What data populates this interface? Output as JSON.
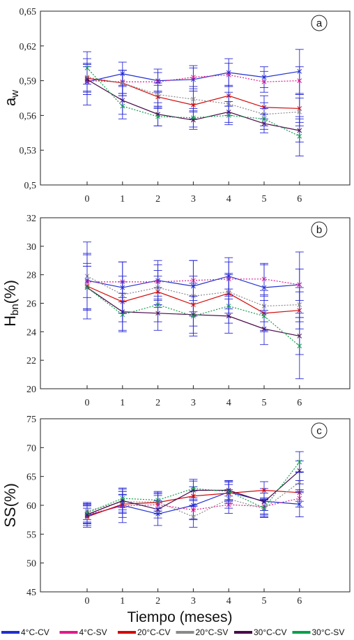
{
  "figure": {
    "x_title": "Tiempo (meses)"
  },
  "legend": [
    {
      "name": "4°C-CV",
      "color": "#1f2fd0"
    },
    {
      "name": "4°C-SV",
      "color": "#e0198c"
    },
    {
      "name": "20°C-CV",
      "color": "#d40a0a"
    },
    {
      "name": "20°C-SV",
      "color": "#8a8a8a"
    },
    {
      "name": "30°C-CV",
      "color": "#4a0a4a"
    },
    {
      "name": "30°C-SV",
      "color": "#0aa04a"
    }
  ],
  "chart_data": [
    {
      "type": "line",
      "panel_label": "a",
      "ylabel_main": "a",
      "ylabel_sub": "w",
      "x": [
        0,
        1,
        2,
        3,
        4,
        5,
        6
      ],
      "ylim": [
        0.5,
        0.65
      ],
      "yticks": [
        "0,5",
        "0,53",
        "0,56",
        "0,59",
        "0,62",
        "0,65"
      ],
      "ytick_values": [
        0.5,
        0.53,
        0.56,
        0.59,
        0.62,
        0.65
      ],
      "error_bars": true,
      "series": [
        {
          "name": "4°C-CV",
          "values": [
            0.589,
            0.596,
            0.59,
            0.591,
            0.597,
            0.593,
            0.598
          ],
          "err": [
            0.02,
            0.01,
            0.01,
            0.01,
            0.012,
            0.009,
            0.019
          ]
        },
        {
          "name": "4°C-SV",
          "values": [
            0.59,
            0.589,
            0.589,
            0.593,
            0.595,
            0.589,
            0.59
          ],
          "err": [
            0.012,
            0.01,
            0.008,
            0.01,
            0.01,
            0.009,
            0.012
          ]
        },
        {
          "name": "20°C-CV",
          "values": [
            0.592,
            0.588,
            0.576,
            0.569,
            0.577,
            0.567,
            0.566
          ],
          "err": [
            0.012,
            0.011,
            0.01,
            0.012,
            0.009,
            0.01,
            0.012
          ]
        },
        {
          "name": "20°C-SV",
          "values": [
            0.593,
            0.588,
            0.578,
            0.574,
            0.57,
            0.561,
            0.563
          ],
          "err": [
            0.012,
            0.011,
            0.01,
            0.011,
            0.01,
            0.01,
            0.012
          ]
        },
        {
          "name": "30°C-CV",
          "values": [
            0.591,
            0.573,
            0.561,
            0.556,
            0.563,
            0.553,
            0.547
          ],
          "err": [
            0.013,
            0.012,
            0.01,
            0.008,
            0.009,
            0.008,
            0.01
          ]
        },
        {
          "name": "30°C-SV",
          "values": [
            0.601,
            0.568,
            0.559,
            0.558,
            0.56,
            0.557,
            0.542
          ],
          "err": [
            0.014,
            0.011,
            0.008,
            0.008,
            0.008,
            0.009,
            0.017
          ]
        }
      ]
    },
    {
      "type": "line",
      "panel_label": "b",
      "ylabel_main": "H",
      "ylabel_sub": "bn",
      "ylabel_rest": "(%)",
      "x": [
        0,
        1,
        2,
        3,
        4,
        5,
        6
      ],
      "ylim": [
        20,
        32
      ],
      "yticks": [
        "20",
        "22",
        "24",
        "26",
        "28",
        "30",
        "32"
      ],
      "ytick_values": [
        20,
        22,
        24,
        26,
        28,
        30,
        32
      ],
      "error_bars": true,
      "series": [
        {
          "name": "4°C-CV",
          "values": [
            27.6,
            27.1,
            27.6,
            27.2,
            27.9,
            27.1,
            27.3
          ],
          "err": [
            2.7,
            1.8,
            1.4,
            1.8,
            1.3,
            1.6,
            2.3
          ]
        },
        {
          "name": "4°C-SV",
          "values": [
            27.5,
            27.5,
            27.5,
            27.6,
            27.7,
            27.7,
            27.3
          ],
          "err": [
            2.0,
            1.4,
            1.2,
            1.4,
            1.2,
            1.1,
            1.1
          ]
        },
        {
          "name": "20°C-CV",
          "values": [
            27.2,
            26.1,
            26.8,
            25.9,
            26.7,
            25.3,
            25.5
          ],
          "err": [
            1.6,
            1.4,
            1.1,
            1.5,
            1.4,
            1.2,
            1.3
          ]
        },
        {
          "name": "20°C-SV",
          "values": [
            27.9,
            26.6,
            27.1,
            26.5,
            26.8,
            25.8,
            25.9
          ],
          "err": [
            1.5,
            1.3,
            1.2,
            1.4,
            1.2,
            1.1,
            1.2
          ]
        },
        {
          "name": "30°C-CV",
          "values": [
            27.1,
            25.4,
            25.3,
            25.2,
            25.1,
            24.2,
            23.7
          ],
          "err": [
            1.5,
            1.3,
            1.2,
            1.3,
            1.2,
            1.1,
            1.3
          ]
        },
        {
          "name": "30°C-SV",
          "values": [
            27.1,
            25.2,
            25.9,
            25.1,
            25.8,
            25.1,
            23.0
          ],
          "err": [
            1.5,
            1.2,
            1.2,
            1.4,
            1.2,
            1.1,
            2.3
          ]
        }
      ]
    },
    {
      "type": "line",
      "panel_label": "c",
      "ylabel_main": "SS(%)",
      "x": [
        0,
        1,
        2,
        3,
        4,
        5,
        6
      ],
      "ylim": [
        45,
        75
      ],
      "yticks": [
        "45",
        "50",
        "55",
        "60",
        "65",
        "70",
        "75"
      ],
      "ytick_values": [
        45,
        50,
        55,
        60,
        65,
        70,
        75
      ],
      "error_bars": true,
      "series": [
        {
          "name": "4°C-CV",
          "values": [
            58.2,
            60.0,
            58.5,
            60.0,
            62.3,
            60.7,
            60.2
          ],
          "err": [
            2.0,
            3.0,
            2.0,
            2.5,
            2.0,
            2.2,
            2.2
          ]
        },
        {
          "name": "4°C-SV",
          "values": [
            58.4,
            59.9,
            60.1,
            59.2,
            60.1,
            59.8,
            61.2
          ],
          "err": [
            1.5,
            2.0,
            1.6,
            1.6,
            1.5,
            1.5,
            1.5
          ]
        },
        {
          "name": "20°C-CV",
          "values": [
            58.0,
            60.2,
            60.5,
            61.6,
            62.1,
            62.6,
            62.2
          ],
          "err": [
            1.5,
            1.6,
            1.5,
            1.6,
            1.5,
            1.5,
            1.5
          ]
        },
        {
          "name": "20°C-SV",
          "values": [
            59.0,
            60.6,
            60.6,
            58.0,
            61.1,
            59.4,
            64.0
          ],
          "err": [
            1.5,
            1.8,
            1.6,
            1.8,
            1.6,
            1.5,
            1.8
          ]
        },
        {
          "name": "30°C-CV",
          "values": [
            58.4,
            60.8,
            59.3,
            62.6,
            62.6,
            60.6,
            66.0
          ],
          "err": [
            1.6,
            1.6,
            1.5,
            1.6,
            1.6,
            1.5,
            1.7
          ]
        },
        {
          "name": "30°C-SV",
          "values": [
            58.7,
            61.2,
            60.9,
            62.9,
            62.4,
            59.5,
            67.5
          ],
          "err": [
            1.6,
            1.6,
            1.5,
            1.6,
            1.6,
            1.5,
            1.8
          ]
        }
      ]
    }
  ]
}
